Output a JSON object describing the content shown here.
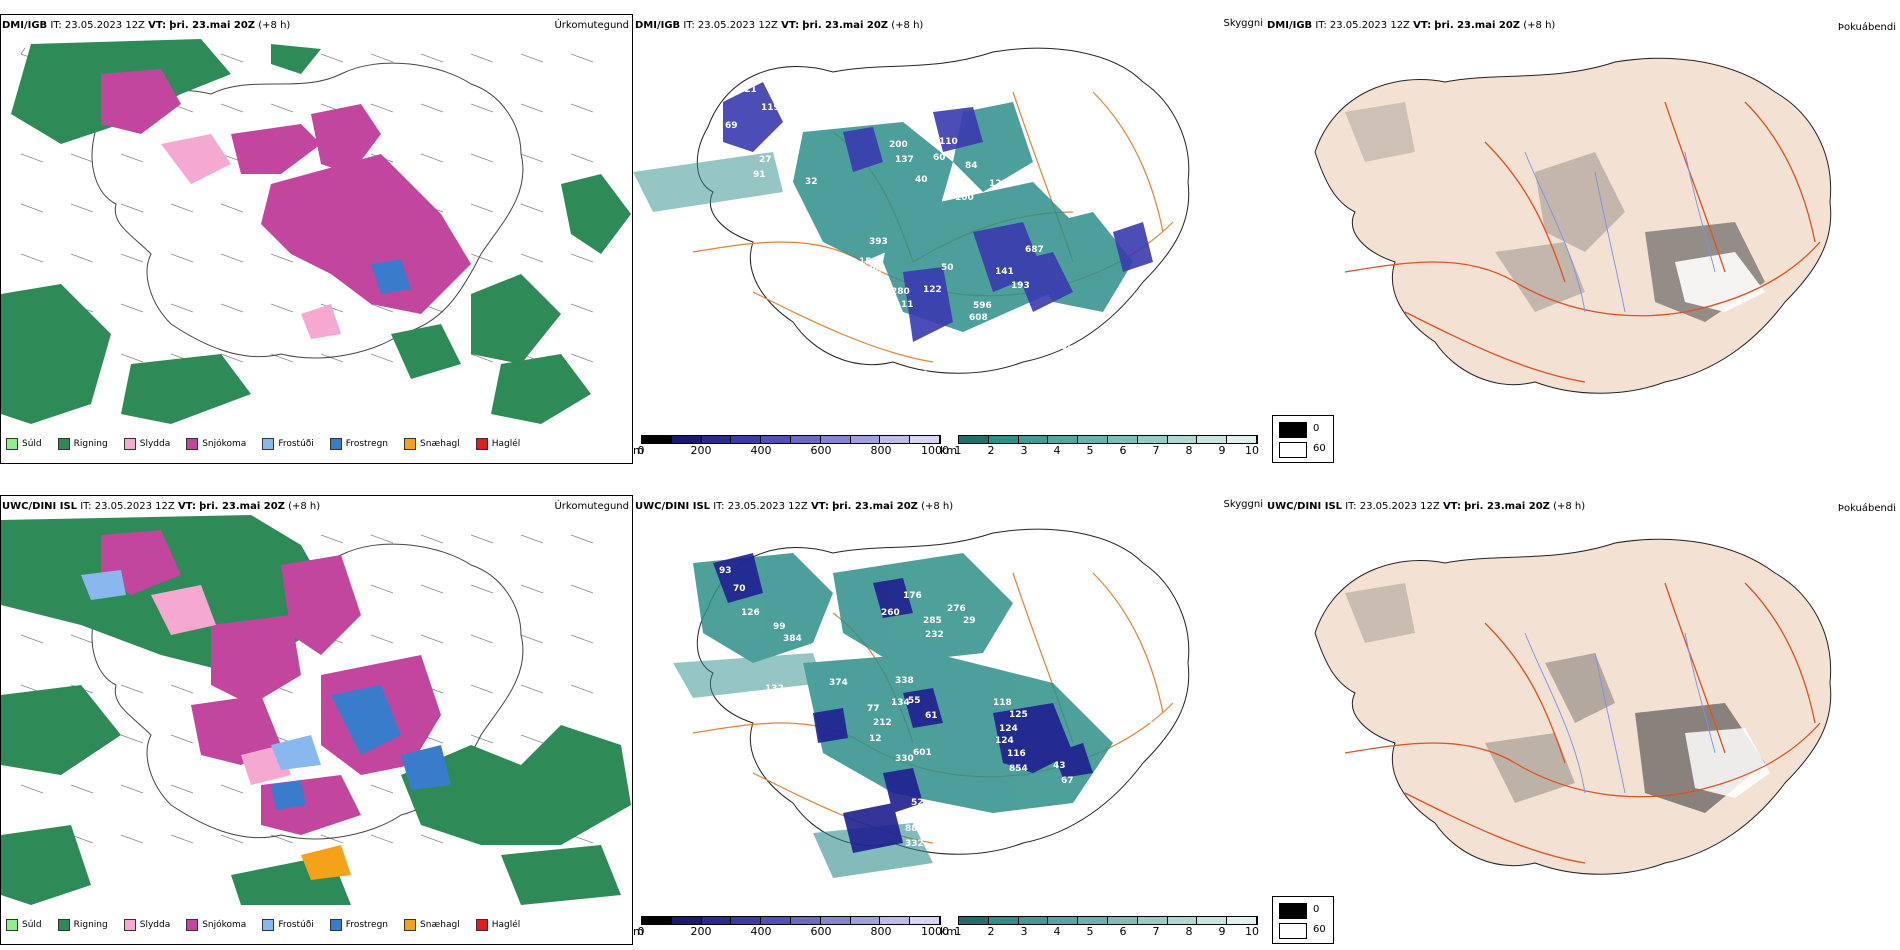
{
  "colors": {
    "rain": "#2e8b57",
    "snow": "#c2459e",
    "sleet": "#f5a8d0",
    "drizzle": "#90ee90",
    "freezing_drizzle": "#89b8ee",
    "freezing_rain": "#3a7ccc",
    "snow_grains": "#f4a21a",
    "hail": "#e21d1d",
    "cloud_teal": "#2f8f8a",
    "cloud_purple": "#3a3ab0",
    "land": "#f3e2d3",
    "roads": "#e8802f",
    "roads_red": "#e05020",
    "rivers": "#7b8fe8"
  },
  "rows": [
    {
      "model": "DMI/IGB",
      "it_label": "IT:",
      "it": "23.05.2023 12Z",
      "vt_label": "VT:",
      "vt": "þri. 23.mai 20Z",
      "lead": "(+8 h)",
      "precip_title": "Úrkomutegund",
      "cloud_title": "Skyggni",
      "visibility_title": "Þokuábendi",
      "cloud_labels": [
        "121",
        "119",
        "69",
        "99",
        "27",
        "91",
        "44",
        "108",
        "130",
        "104",
        "173",
        "280",
        "11",
        "122",
        "50",
        "141",
        "193",
        "596",
        "608",
        "140",
        "115",
        "38",
        "119",
        "93",
        "237",
        "744",
        "59",
        "80",
        "200",
        "137",
        "40",
        "110",
        "60",
        "84",
        "100",
        "123",
        "687",
        "393",
        "150",
        "114",
        "32"
      ]
    },
    {
      "model": "UWC/DINI ISL",
      "it_label": "IT:",
      "it": "23.05.2023 12Z",
      "vt_label": "VT:",
      "vt": "þri. 23.mai 20Z",
      "lead": "(+8 h)",
      "precip_title": "Úrkomutegund",
      "cloud_title": "Skyggni",
      "visibility_title": "Þokuábendi",
      "cloud_labels": [
        "173",
        "93",
        "70",
        "126",
        "99",
        "384",
        "132",
        "374",
        "77",
        "134",
        "338",
        "55",
        "61",
        "212",
        "12",
        "330",
        "601",
        "52",
        "88",
        "332",
        "45",
        "176",
        "260",
        "285",
        "232",
        "276",
        "29",
        "429",
        "118",
        "125",
        "124",
        "124",
        "116",
        "854",
        "43",
        "67",
        "12"
      ]
    }
  ],
  "precip_legend": [
    "Súld",
    "Rigning",
    "Slydda",
    "Snjókoma",
    "Frostúði",
    "Frostregn",
    "Snæhagl",
    "Haglél"
  ],
  "height_bar": {
    "unit": "m",
    "ticks": [
      "0",
      "200",
      "400",
      "600",
      "800",
      "1000"
    ]
  },
  "cloud_bar": {
    "unit": "km",
    "ticks": [
      "1",
      "2",
      "3",
      "4",
      "5",
      "6",
      "7",
      "8",
      "9",
      "10"
    ]
  },
  "fog_legend": {
    "labels": [
      "0",
      "60"
    ]
  }
}
